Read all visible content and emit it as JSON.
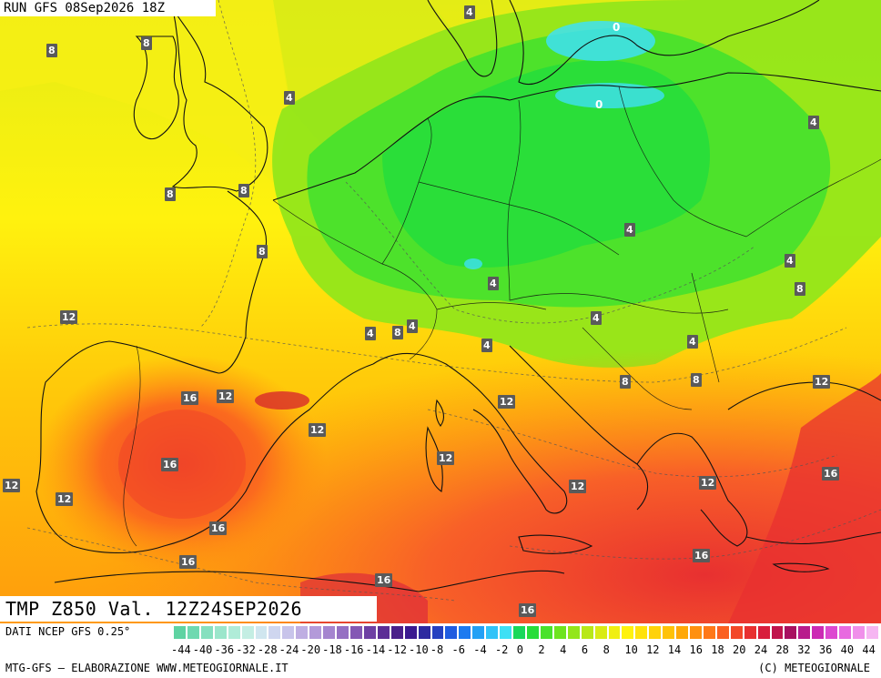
{
  "header": {
    "run": "RUN GFS 08Sep2026 18Z"
  },
  "field": {
    "title": "TMP  Z850  Val.  12Z24SEP2026"
  },
  "legend": {
    "source": "DATI NCEP GFS 0.25°",
    "ticks": [
      "-44",
      "-40",
      "-36",
      "-32",
      "-28",
      "-24",
      "-20",
      "-18",
      "-16",
      "-14",
      "-12",
      "-10",
      "-8",
      "-6",
      "-4",
      "-2",
      "0",
      "2",
      "4",
      "6",
      "8",
      "10",
      "12",
      "14",
      "16",
      "18",
      "20",
      "24",
      "28",
      "32",
      "36",
      "40",
      "44"
    ],
    "colors": [
      "#5fd3a2",
      "#6fd9b0",
      "#86e0bf",
      "#9be6cb",
      "#b0ecd8",
      "#c4eee3",
      "#d0e6ef",
      "#cfd6ef",
      "#c8c4ea",
      "#bfaee2",
      "#b39ad9",
      "#a585cf",
      "#9570c3",
      "#8458b4",
      "#6e40a4",
      "#5c2e96",
      "#4a208a",
      "#3a1a90",
      "#2d2aa0",
      "#2540c0",
      "#1f5ce0",
      "#1c7af0",
      "#23a0f5",
      "#30c3f8",
      "#3ee0f5",
      "#19d85a",
      "#28dd3a",
      "#49e22c",
      "#6ee41f",
      "#93e61a",
      "#b8e818",
      "#d9eb15",
      "#f0ef12",
      "#fff20e",
      "#ffe20c",
      "#ffd20a",
      "#ffc208",
      "#ffa808",
      "#ff9010",
      "#ff7818",
      "#fb6020",
      "#f34828",
      "#e83030",
      "#d81e3c",
      "#c0144c",
      "#a81060",
      "#b81c8c",
      "#cc2ab4",
      "#dd48d0",
      "#e86ae0",
      "#f090ea",
      "#f6b6f2"
    ],
    "credit_left": "MTG-GFS – ELABORAZIONE WWW.METEOGIORNALE.IT",
    "credit_right": "(C) METEOGIORNALE"
  },
  "isotherm_labels": [
    "0",
    "0",
    "4",
    "4",
    "4",
    "4",
    "4",
    "4",
    "4",
    "4",
    "4",
    "4",
    "4",
    "8",
    "8",
    "8",
    "8",
    "8",
    "8",
    "8",
    "8",
    "8",
    "12",
    "12",
    "12",
    "12",
    "12",
    "12",
    "12",
    "12",
    "12",
    "12",
    "12",
    "16",
    "16",
    "16",
    "16",
    "16",
    "16",
    "16",
    "16"
  ]
}
